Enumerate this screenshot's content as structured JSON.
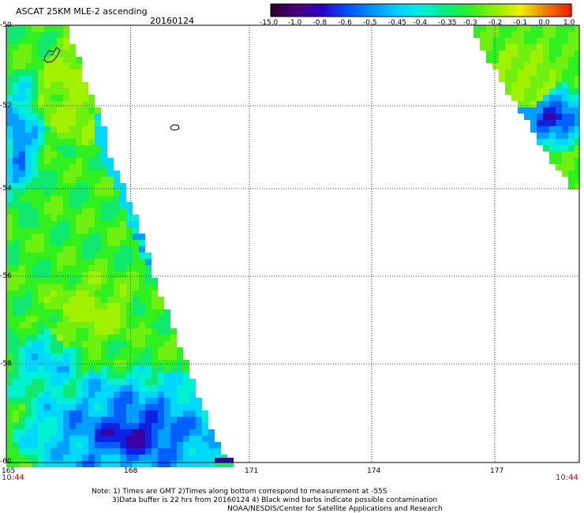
{
  "header": {
    "product_title": "ASCAT 25KM MLE-2 ascending",
    "date": "20160124"
  },
  "colorbar": {
    "labels": [
      "-15.0",
      "-1.0",
      "-0.8",
      "-0.6",
      "-0.5",
      "-0.45",
      "-0.4",
      "-0.35",
      "-0.3",
      "-0.2",
      "-0.1",
      "0.0",
      "1.0"
    ],
    "colors": [
      "#2b0033",
      "#4b0080",
      "#2a00c8",
      "#0050ff",
      "#0090ff",
      "#00d0ff",
      "#00f0e0",
      "#00f080",
      "#30f020",
      "#90f000",
      "#f0f000",
      "#f08000",
      "#f02000"
    ]
  },
  "axes": {
    "x_ticks": [
      "165",
      "168",
      "171",
      "174",
      "177"
    ],
    "y_ticks": [
      "-50",
      "-52",
      "-54",
      "-56",
      "-58",
      "-60"
    ]
  },
  "times": {
    "left": "10:44",
    "right": "10:44"
  },
  "notes": {
    "line1": "Note: 1) Times are GMT 2)Times along bottom correspond to measurement at -55S",
    "line2": "3)Data buffer is 22 hrs from 20160124 4) Black wind barbs indicate possible contamination",
    "line3": "NOAA/NESDIS/Center for Satellite Applications and Research"
  }
}
